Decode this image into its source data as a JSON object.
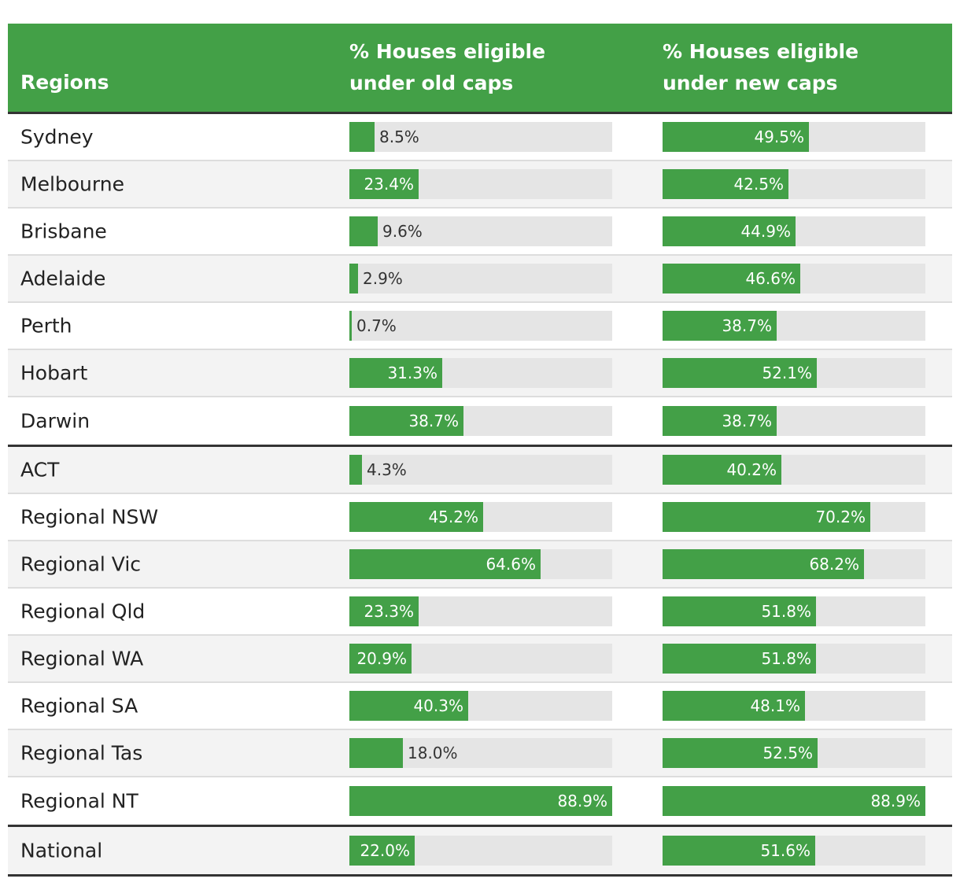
{
  "chart_data": {
    "type": "table",
    "columns": [
      "Regions",
      "% Houses eligible under old caps",
      "% Houses eligible under new caps"
    ],
    "rows": [
      {
        "region": "Sydney",
        "old": 8.5,
        "new": 49.5,
        "old_label": "8.5%",
        "new_label": "49.5%"
      },
      {
        "region": "Melbourne",
        "old": 23.4,
        "new": 42.5,
        "old_label": "23.4%",
        "new_label": "42.5%"
      },
      {
        "region": "Brisbane",
        "old": 9.6,
        "new": 44.9,
        "old_label": "9.6%",
        "new_label": "44.9%"
      },
      {
        "region": "Adelaide",
        "old": 2.9,
        "new": 46.6,
        "old_label": "2.9%",
        "new_label": "46.6%"
      },
      {
        "region": "Perth",
        "old": 0.7,
        "new": 38.7,
        "old_label": "0.7%",
        "new_label": "38.7%"
      },
      {
        "region": "Hobart",
        "old": 31.3,
        "new": 52.1,
        "old_label": "31.3%",
        "new_label": "52.1%"
      },
      {
        "region": "Darwin",
        "old": 38.7,
        "new": 38.7,
        "old_label": "38.7%",
        "new_label": "38.7%",
        "group_end": true
      },
      {
        "region": "ACT",
        "old": 4.3,
        "new": 40.2,
        "old_label": "4.3%",
        "new_label": "40.2%"
      },
      {
        "region": "Regional NSW",
        "old": 45.2,
        "new": 70.2,
        "old_label": "45.2%",
        "new_label": "70.2%"
      },
      {
        "region": "Regional Vic",
        "old": 64.6,
        "new": 68.2,
        "old_label": "64.6%",
        "new_label": "68.2%"
      },
      {
        "region": "Regional Qld",
        "old": 23.3,
        "new": 51.8,
        "old_label": "23.3%",
        "new_label": "51.8%"
      },
      {
        "region": "Regional WA",
        "old": 20.9,
        "new": 51.8,
        "old_label": "20.9%",
        "new_label": "51.8%"
      },
      {
        "region": "Regional SA",
        "old": 40.3,
        "new": 48.1,
        "old_label": "40.3%",
        "new_label": "48.1%"
      },
      {
        "region": "Regional Tas",
        "old": 18.0,
        "new": 52.5,
        "old_label": "18.0%",
        "new_label": "52.5%"
      },
      {
        "region": "Regional NT",
        "old": 88.9,
        "new": 88.9,
        "old_label": "88.9%",
        "new_label": "88.9%",
        "group_end": true
      },
      {
        "region": "National",
        "old": 22.0,
        "new": 51.6,
        "old_label": "22.0%",
        "new_label": "51.6%",
        "group_end": true
      }
    ],
    "bar_scale_max": 88.9,
    "colors": {
      "bar": "#43a047",
      "track": "#e5e5e5",
      "header": "#43a047"
    }
  }
}
